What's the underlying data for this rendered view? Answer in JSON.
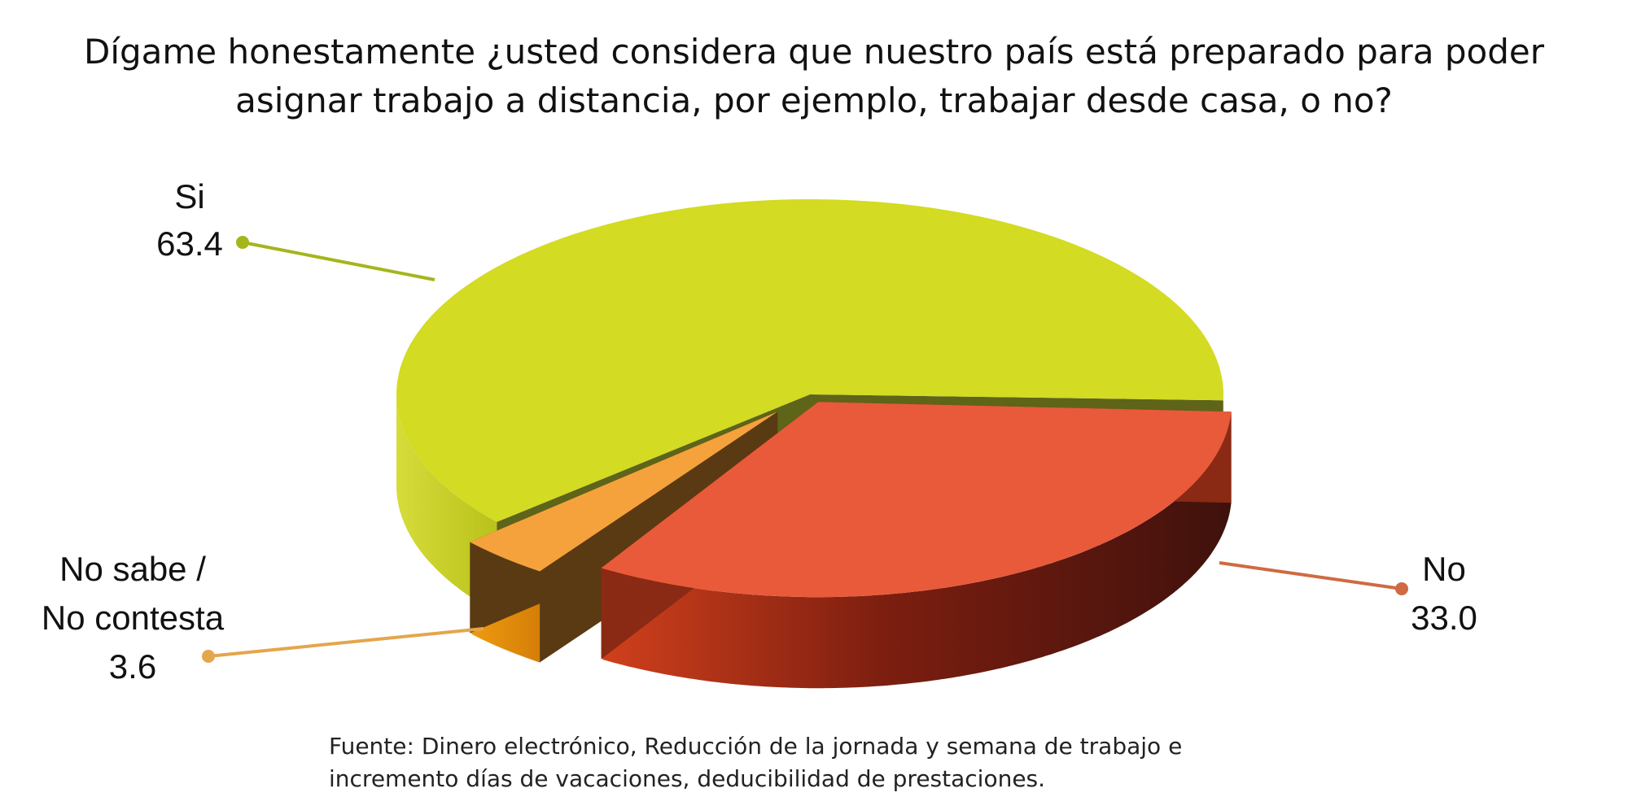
{
  "chart_data": {
    "type": "pie",
    "title_lines": [
      "Dígame honestamente ¿usted considera que nuestro país está preparado para poder",
      "asignar trabajo a distancia, por ejemplo, trabajar desde casa, o no?"
    ],
    "slices": [
      {
        "label": "Si",
        "value": 63.4,
        "value_text": "63.4",
        "color": "#D3DB22",
        "side_color": "#C9D121",
        "leader_color": "#A5B51C"
      },
      {
        "label": "No",
        "value": 33.0,
        "value_text": "33.0",
        "color": "#E95A3A",
        "side_color": "#B4301A",
        "leader_color": "#CF6A43"
      },
      {
        "label": "No sabe / No contesta",
        "label_lines": [
          "No sabe /",
          "No contesta"
        ],
        "value": 3.6,
        "value_text": "3.6",
        "color": "#F6A23C",
        "side_color": "#E5900A",
        "leader_color": "#E4A64B"
      }
    ]
  },
  "source_lines": [
    "Fuente: Dinero electrónico, Reducción de la jornada y semana de trabajo e",
    "incremento días de vacaciones, deducibilidad de prestaciones."
  ]
}
